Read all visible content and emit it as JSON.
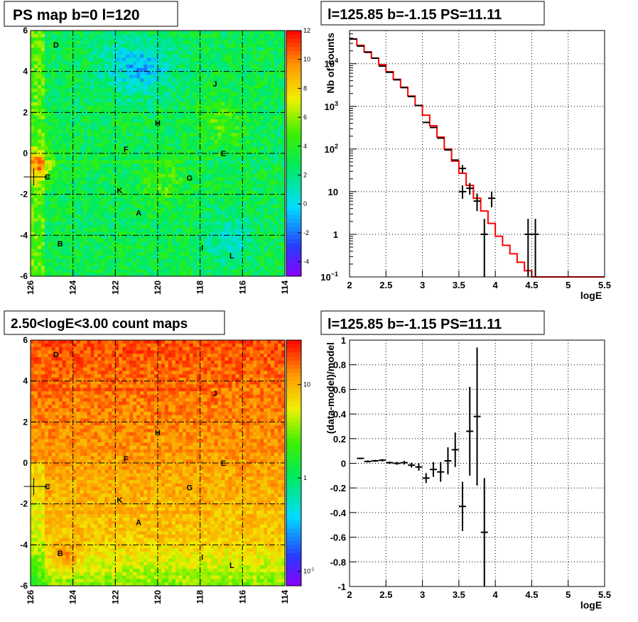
{
  "colors": {
    "palette_low": "#8a00ff",
    "palette_high": "#ff0000",
    "model_line": "#ff0000",
    "data_points": "#000000",
    "grid": "#000000"
  },
  "chart_data": [
    {
      "type": "heatmap",
      "title": "PS map b=0 l=120",
      "xlabel": "",
      "ylabel": "",
      "xlim": [
        126,
        114
      ],
      "ylim": [
        -6,
        6
      ],
      "x_ticks": [
        "126",
        "124",
        "122",
        "120",
        "118",
        "116",
        "114"
      ],
      "y_ticks": [
        "6",
        "4",
        "2",
        "0",
        "-2",
        "-4",
        "-6"
      ],
      "grid": true,
      "colorbar": {
        "range": [
          -5,
          12
        ],
        "ticks": [
          "12",
          "10",
          "8",
          "6",
          "4",
          "2",
          "0",
          "-2",
          "-4"
        ]
      },
      "source_labels": [
        {
          "name": "D",
          "l": 124.8,
          "b": 5.3
        },
        {
          "name": "J",
          "l": 117.3,
          "b": 3.4
        },
        {
          "name": "H",
          "l": 120.0,
          "b": 1.5
        },
        {
          "name": "F",
          "l": 121.5,
          "b": 0.2
        },
        {
          "name": "E",
          "l": 116.9,
          "b": 0.0
        },
        {
          "name": "C",
          "l": 125.2,
          "b": -1.15
        },
        {
          "name": "G",
          "l": 118.5,
          "b": -1.2
        },
        {
          "name": "K",
          "l": 121.8,
          "b": -1.8
        },
        {
          "name": "A",
          "l": 120.9,
          "b": -2.9
        },
        {
          "name": "B",
          "l": 124.6,
          "b": -4.4
        },
        {
          "name": "I",
          "l": 117.9,
          "b": -4.6
        },
        {
          "name": "L",
          "l": 116.5,
          "b": -5.0
        }
      ],
      "marker": {
        "l": 125.85,
        "b": -1.15
      }
    },
    {
      "type": "line",
      "title": "l=125.85 b=-1.15 PS=11.11",
      "xlabel": "logE",
      "ylabel": "Nb of counts",
      "xlim": [
        2,
        5.5
      ],
      "ylim": [
        0.1,
        60000
      ],
      "yscale": "log",
      "x_ticks": [
        "2",
        "2.5",
        "3",
        "3.5",
        "4",
        "4.5",
        "5",
        "5.5"
      ],
      "y_ticks": [
        {
          "base": "10",
          "exp": "−1",
          "v": 0.1
        },
        {
          "base": "1",
          "exp": "",
          "v": 1
        },
        {
          "base": "10",
          "exp": "",
          "v": 10
        },
        {
          "base": "10",
          "exp": "2",
          "v": 100
        },
        {
          "base": "10",
          "exp": "3",
          "v": 1000
        },
        {
          "base": "10",
          "exp": "4",
          "v": 10000
        }
      ],
      "grid": true,
      "model_step": [
        {
          "x": 2.0,
          "y": 38000
        },
        {
          "x": 2.1,
          "y": 27000
        },
        {
          "x": 2.2,
          "y": 19000
        },
        {
          "x": 2.3,
          "y": 13500
        },
        {
          "x": 2.4,
          "y": 9500
        },
        {
          "x": 2.5,
          "y": 6500
        },
        {
          "x": 2.6,
          "y": 4300
        },
        {
          "x": 2.7,
          "y": 2800
        },
        {
          "x": 2.8,
          "y": 1750
        },
        {
          "x": 2.9,
          "y": 1050
        },
        {
          "x": 3.0,
          "y": 620
        },
        {
          "x": 3.1,
          "y": 350
        },
        {
          "x": 3.2,
          "y": 190
        },
        {
          "x": 3.3,
          "y": 100
        },
        {
          "x": 3.4,
          "y": 52
        },
        {
          "x": 3.5,
          "y": 27
        },
        {
          "x": 3.6,
          "y": 14
        },
        {
          "x": 3.7,
          "y": 7
        },
        {
          "x": 3.8,
          "y": 3.5
        },
        {
          "x": 3.9,
          "y": 1.8
        },
        {
          "x": 4.0,
          "y": 0.9
        },
        {
          "x": 4.1,
          "y": 0.55
        },
        {
          "x": 4.2,
          "y": 0.35
        },
        {
          "x": 4.3,
          "y": 0.22
        },
        {
          "x": 4.4,
          "y": 0.14
        },
        {
          "x": 4.5,
          "y": 0.1
        }
      ],
      "data_points": [
        {
          "x": 2.05,
          "y": 38000
        },
        {
          "x": 2.15,
          "y": 26000
        },
        {
          "x": 2.25,
          "y": 18500
        },
        {
          "x": 2.35,
          "y": 13500
        },
        {
          "x": 2.45,
          "y": 8800
        },
        {
          "x": 2.55,
          "y": 6300
        },
        {
          "x": 2.65,
          "y": 4200
        },
        {
          "x": 2.75,
          "y": 2750
        },
        {
          "x": 2.85,
          "y": 1700
        },
        {
          "x": 2.95,
          "y": 1050
        },
        {
          "x": 3.05,
          "y": 420
        },
        {
          "x": 3.15,
          "y": 320
        },
        {
          "x": 3.25,
          "y": 180
        },
        {
          "x": 3.35,
          "y": 95
        },
        {
          "x": 3.45,
          "y": 55
        },
        {
          "x": 3.55,
          "y": 35,
          "lo": 28,
          "hi": 42
        },
        {
          "x": 3.55,
          "y": 10,
          "lo": 6.8,
          "hi": 14
        },
        {
          "x": 3.65,
          "y": 12,
          "lo": 8.5,
          "hi": 16
        },
        {
          "x": 3.75,
          "y": 6,
          "lo": 3.5,
          "hi": 9
        },
        {
          "x": 3.85,
          "y": 1,
          "lo": 0.1,
          "hi": 2.3
        },
        {
          "x": 3.95,
          "y": 7,
          "lo": 4.3,
          "hi": 10
        },
        {
          "x": 4.45,
          "y": 1,
          "lo": 0.1,
          "hi": 2.3
        },
        {
          "x": 4.55,
          "y": 1,
          "lo": 0.1,
          "hi": 2.3
        }
      ]
    },
    {
      "type": "heatmap",
      "title": "2.50<logE<3.00 count maps",
      "xlabel": "",
      "ylabel": "",
      "xlim": [
        126,
        114
      ],
      "ylim": [
        -6,
        6
      ],
      "x_ticks": [
        "126",
        "124",
        "122",
        "120",
        "118",
        "116",
        "114"
      ],
      "y_ticks": [
        "6",
        "4",
        "2",
        "0",
        "-2",
        "-4",
        "-6"
      ],
      "grid": true,
      "colorbar": {
        "scale": "log",
        "range": [
          0.07,
          30
        ],
        "ticks": [
          {
            "base": "10",
            "exp": "",
            "v": 10
          },
          {
            "base": "1",
            "exp": "",
            "v": 1
          },
          {
            "base": "10",
            "exp": "-1",
            "v": 0.1
          }
        ]
      },
      "source_labels": [
        {
          "name": "D",
          "l": 124.8,
          "b": 5.3
        },
        {
          "name": "J",
          "l": 117.3,
          "b": 3.4
        },
        {
          "name": "H",
          "l": 120.0,
          "b": 1.5
        },
        {
          "name": "F",
          "l": 121.5,
          "b": 0.2
        },
        {
          "name": "E",
          "l": 116.9,
          "b": 0.0
        },
        {
          "name": "C",
          "l": 125.2,
          "b": -1.15
        },
        {
          "name": "G",
          "l": 118.5,
          "b": -1.2
        },
        {
          "name": "K",
          "l": 121.8,
          "b": -1.8
        },
        {
          "name": "A",
          "l": 120.9,
          "b": -2.9
        },
        {
          "name": "B",
          "l": 124.6,
          "b": -4.4
        },
        {
          "name": "I",
          "l": 117.9,
          "b": -4.6
        },
        {
          "name": "L",
          "l": 116.5,
          "b": -5.0
        }
      ],
      "marker": {
        "l": 125.85,
        "b": -1.15
      }
    },
    {
      "type": "scatter",
      "title": "l=125.85 b=-1.15 PS=11.11",
      "xlabel": "logE",
      "ylabel": "(data-model)/model",
      "xlim": [
        2,
        5.5
      ],
      "ylim": [
        -1,
        1
      ],
      "x_ticks": [
        "2",
        "2.5",
        "3",
        "3.5",
        "4",
        "4.5",
        "5",
        "5.5"
      ],
      "y_ticks": [
        "1",
        "0.8",
        "0.6",
        "0.4",
        "0.2",
        "0",
        "-0.2",
        "-0.4",
        "-0.6",
        "-0.8",
        "-1"
      ],
      "grid": true,
      "points": [
        {
          "x": 2.15,
          "y": 0.04,
          "e": 0.005
        },
        {
          "x": 2.25,
          "y": 0.015,
          "e": 0.008
        },
        {
          "x": 2.35,
          "y": 0.02,
          "e": 0.008
        },
        {
          "x": 2.45,
          "y": 0.025,
          "e": 0.01
        },
        {
          "x": 2.55,
          "y": 0.005,
          "e": 0.01
        },
        {
          "x": 2.65,
          "y": 0.0,
          "e": 0.012
        },
        {
          "x": 2.75,
          "y": 0.005,
          "e": 0.015
        },
        {
          "x": 2.85,
          "y": -0.015,
          "e": 0.02
        },
        {
          "x": 2.95,
          "y": -0.03,
          "e": 0.03
        },
        {
          "x": 3.05,
          "y": -0.12,
          "e": 0.04
        },
        {
          "x": 3.15,
          "y": -0.05,
          "e": 0.06
        },
        {
          "x": 3.25,
          "y": -0.07,
          "e": 0.08
        },
        {
          "x": 3.35,
          "y": 0.02,
          "e": 0.11
        },
        {
          "x": 3.45,
          "y": 0.11,
          "e": 0.14
        },
        {
          "x": 3.55,
          "y": -0.35,
          "e": 0.2
        },
        {
          "x": 3.65,
          "y": 0.26,
          "e": 0.36
        },
        {
          "x": 3.75,
          "y": 0.38,
          "e": 0.56
        },
        {
          "x": 3.85,
          "y": -0.56,
          "e": 0.44
        }
      ]
    }
  ]
}
